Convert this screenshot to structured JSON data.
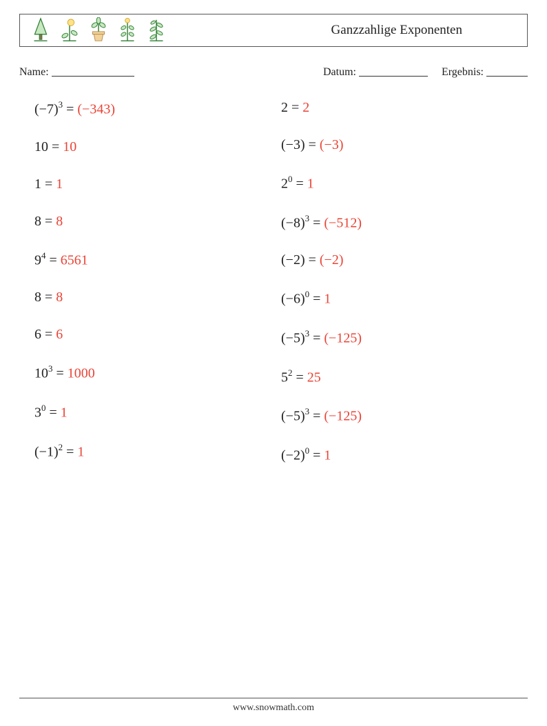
{
  "header": {
    "title": "Ganzzahlige Exponenten"
  },
  "meta": {
    "name_label": "Name:",
    "date_label": "Datum:",
    "score_label": "Ergebnis:"
  },
  "style": {
    "answer_color": "#ea4335",
    "text_color": "#222222",
    "icon_outline": "#2e7d32",
    "icon_fill_leaf": "#c7e8c0",
    "icon_fill_pot": "#f2d49b",
    "icon_fill_flower": "#ffe28a",
    "font_size_problem": 20,
    "font_size_sup": 13,
    "font_size_title": 19,
    "row_gap": 34
  },
  "columns": [
    {
      "problems": [
        {
          "base": "(−7)",
          "exp": "3",
          "answer": "(−343)"
        },
        {
          "base": "10",
          "exp": "",
          "answer": "10"
        },
        {
          "base": "1",
          "exp": "",
          "answer": "1"
        },
        {
          "base": "8",
          "exp": "",
          "answer": "8"
        },
        {
          "base": "9",
          "exp": "4",
          "answer": "6561"
        },
        {
          "base": "8",
          "exp": "",
          "answer": "8"
        },
        {
          "base": "6",
          "exp": "",
          "answer": "6"
        },
        {
          "base": "10",
          "exp": "3",
          "answer": "1000"
        },
        {
          "base": "3",
          "exp": "0",
          "answer": "1"
        },
        {
          "base": "(−1)",
          "exp": "2",
          "answer": "1"
        }
      ]
    },
    {
      "problems": [
        {
          "base": "2",
          "exp": "",
          "answer": "2"
        },
        {
          "base": "(−3)",
          "exp": "",
          "answer": "(−3)"
        },
        {
          "base": "2",
          "exp": "0",
          "answer": "1"
        },
        {
          "base": "(−8)",
          "exp": "3",
          "answer": "(−512)"
        },
        {
          "base": "(−2)",
          "exp": "",
          "answer": "(−2)"
        },
        {
          "base": "(−6)",
          "exp": "0",
          "answer": "1"
        },
        {
          "base": "(−5)",
          "exp": "3",
          "answer": "(−125)"
        },
        {
          "base": "5",
          "exp": "2",
          "answer": "25"
        },
        {
          "base": "(−5)",
          "exp": "3",
          "answer": "(−125)"
        },
        {
          "base": "(−2)",
          "exp": "0",
          "answer": "1"
        }
      ]
    }
  ],
  "footer": {
    "url": "www.snowmath.com"
  }
}
